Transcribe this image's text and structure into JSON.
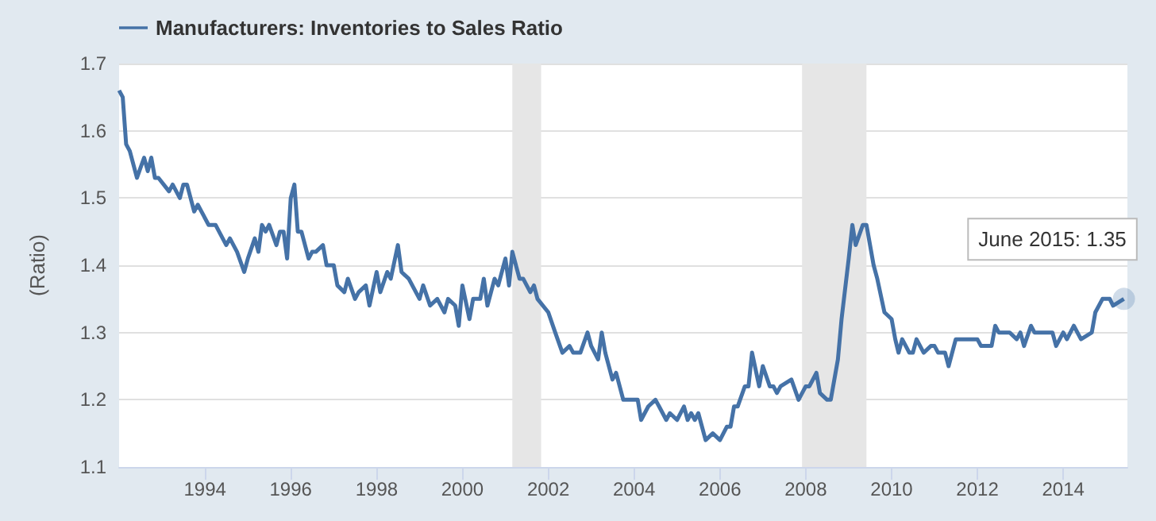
{
  "chart_data": {
    "type": "line",
    "ylabel": "(Ratio)",
    "legend": "top left",
    "grid": "y",
    "marker": "none",
    "line_style": "solid",
    "xlim": [
      "1992-01",
      "2015-07"
    ],
    "xticks": [
      "1994",
      "1996",
      "1998",
      "2000",
      "2002",
      "2004",
      "2006",
      "2008",
      "2010",
      "2012",
      "2014"
    ],
    "ylim": [
      1.1,
      1.7
    ],
    "yticks": [
      1.1,
      1.2,
      1.3,
      1.4,
      1.5,
      1.6,
      1.7
    ],
    "bands": [
      {
        "axis": "x",
        "from": "2001-03",
        "to": "2001-11",
        "color": "#e6e6e6"
      },
      {
        "axis": "x",
        "from": "2007-12",
        "to": "2009-06",
        "color": "#e6e6e6"
      }
    ],
    "annotations": [
      {
        "text": "June 2015: 1.35",
        "x": "2015-06",
        "y": 1.35
      }
    ],
    "x": [
      "1992-01",
      "1992-02",
      "1992-03",
      "1992-04",
      "1992-06",
      "1992-08",
      "1992-09",
      "1992-10",
      "1992-11",
      "1992-12",
      "1993-03",
      "1993-04",
      "1993-06",
      "1993-07",
      "1993-08",
      "1993-10",
      "1993-11",
      "1994-02",
      "1994-04",
      "1994-05",
      "1994-07",
      "1994-08",
      "1994-10",
      "1994-12",
      "1995-01",
      "1995-03",
      "1995-04",
      "1995-05",
      "1995-06",
      "1995-07",
      "1995-09",
      "1995-10",
      "1995-11",
      "1995-12",
      "1996-01",
      "1996-02",
      "1996-03",
      "1996-04",
      "1996-06",
      "1996-07",
      "1996-08",
      "1996-10",
      "1996-11",
      "1997-01",
      "1997-02",
      "1997-04",
      "1997-05",
      "1997-07",
      "1997-08",
      "1997-10",
      "1997-11",
      "1998-01",
      "1998-02",
      "1998-04",
      "1998-05",
      "1998-07",
      "1998-08",
      "1998-10",
      "1999-01",
      "1999-02",
      "1999-04",
      "1999-06",
      "1999-08",
      "1999-09",
      "1999-11",
      "1999-12",
      "2000-01",
      "2000-03",
      "2000-04",
      "2000-06",
      "2000-07",
      "2000-08",
      "2000-10",
      "2000-11",
      "2001-01",
      "2001-02",
      "2001-03",
      "2001-05",
      "2001-06",
      "2001-08",
      "2001-09",
      "2001-10",
      "2002-01",
      "2002-03",
      "2002-05",
      "2002-07",
      "2002-08",
      "2002-10",
      "2002-12",
      "2003-01",
      "2003-03",
      "2003-04",
      "2003-05",
      "2003-07",
      "2003-08",
      "2003-10",
      "2004-02",
      "2004-03",
      "2004-05",
      "2004-07",
      "2004-08",
      "2004-10",
      "2004-11",
      "2005-01",
      "2005-03",
      "2005-04",
      "2005-05",
      "2005-06",
      "2005-07",
      "2005-09",
      "2005-11",
      "2006-01",
      "2006-03",
      "2006-04",
      "2006-05",
      "2006-06",
      "2006-08",
      "2006-09",
      "2006-10",
      "2006-12",
      "2007-01",
      "2007-03",
      "2007-04",
      "2007-05",
      "2007-06",
      "2007-09",
      "2007-11",
      "2008-01",
      "2008-02",
      "2008-04",
      "2008-05",
      "2008-07",
      "2008-08",
      "2008-10",
      "2008-11",
      "2009-01",
      "2009-02",
      "2009-03",
      "2009-05",
      "2009-06",
      "2009-08",
      "2009-09",
      "2009-11",
      "2010-01",
      "2010-02",
      "2010-03",
      "2010-04",
      "2010-06",
      "2010-07",
      "2010-08",
      "2010-10",
      "2010-12",
      "2011-01",
      "2011-02",
      "2011-04",
      "2011-05",
      "2011-07",
      "2011-08",
      "2012-01",
      "2012-02",
      "2012-05",
      "2012-06",
      "2012-07",
      "2012-10",
      "2012-12",
      "2013-01",
      "2013-02",
      "2013-04",
      "2013-05",
      "2013-10",
      "2013-11",
      "2014-01",
      "2014-02",
      "2014-04",
      "2014-06",
      "2014-09",
      "2014-10",
      "2014-12",
      "2015-02",
      "2015-03",
      "2015-06"
    ],
    "series": [
      {
        "name": "Manufacturers: Inventories to Sales Ratio",
        "color": "#4572a7",
        "values": [
          1.66,
          1.65,
          1.58,
          1.57,
          1.53,
          1.56,
          1.54,
          1.56,
          1.53,
          1.53,
          1.51,
          1.52,
          1.5,
          1.52,
          1.52,
          1.48,
          1.49,
          1.46,
          1.46,
          1.45,
          1.43,
          1.44,
          1.42,
          1.39,
          1.41,
          1.44,
          1.42,
          1.46,
          1.45,
          1.46,
          1.43,
          1.45,
          1.45,
          1.41,
          1.5,
          1.52,
          1.45,
          1.45,
          1.41,
          1.42,
          1.42,
          1.43,
          1.4,
          1.4,
          1.37,
          1.36,
          1.38,
          1.35,
          1.36,
          1.37,
          1.34,
          1.39,
          1.36,
          1.39,
          1.38,
          1.43,
          1.39,
          1.38,
          1.35,
          1.37,
          1.34,
          1.35,
          1.33,
          1.35,
          1.34,
          1.31,
          1.37,
          1.32,
          1.35,
          1.35,
          1.38,
          1.34,
          1.38,
          1.37,
          1.41,
          1.37,
          1.42,
          1.38,
          1.38,
          1.36,
          1.37,
          1.35,
          1.33,
          1.3,
          1.27,
          1.28,
          1.27,
          1.27,
          1.3,
          1.28,
          1.26,
          1.3,
          1.27,
          1.23,
          1.24,
          1.2,
          1.2,
          1.17,
          1.19,
          1.2,
          1.19,
          1.17,
          1.18,
          1.17,
          1.19,
          1.17,
          1.18,
          1.17,
          1.18,
          1.14,
          1.15,
          1.14,
          1.16,
          1.16,
          1.19,
          1.19,
          1.22,
          1.22,
          1.27,
          1.22,
          1.25,
          1.22,
          1.22,
          1.21,
          1.22,
          1.23,
          1.2,
          1.22,
          1.22,
          1.24,
          1.21,
          1.2,
          1.2,
          1.26,
          1.32,
          1.41,
          1.46,
          1.43,
          1.46,
          1.46,
          1.4,
          1.38,
          1.33,
          1.32,
          1.29,
          1.27,
          1.29,
          1.27,
          1.27,
          1.29,
          1.27,
          1.28,
          1.28,
          1.27,
          1.27,
          1.25,
          1.29,
          1.29,
          1.29,
          1.28,
          1.28,
          1.31,
          1.3,
          1.3,
          1.29,
          1.3,
          1.28,
          1.31,
          1.3,
          1.3,
          1.28,
          1.3,
          1.29,
          1.31,
          1.29,
          1.3,
          1.33,
          1.35,
          1.35,
          1.34,
          1.35
        ]
      }
    ]
  }
}
